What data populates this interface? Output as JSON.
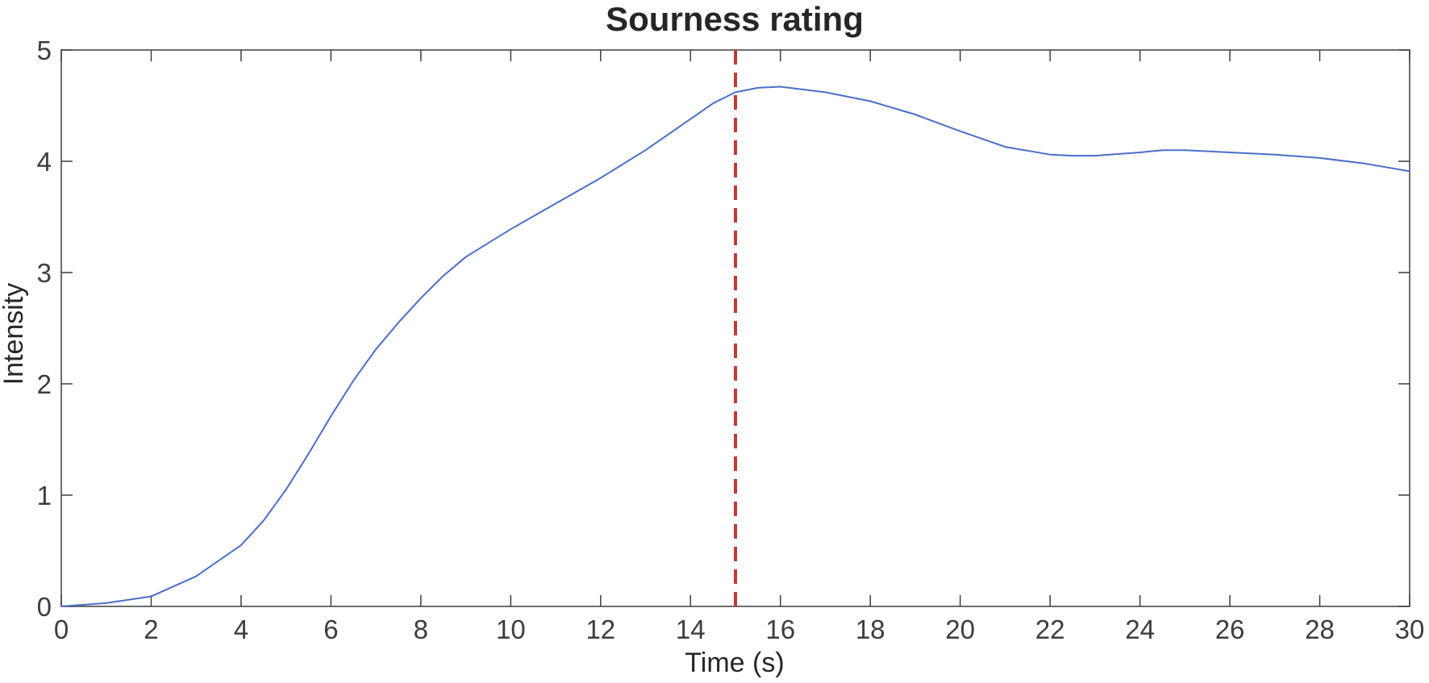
{
  "chart_data": {
    "type": "line",
    "title": "Sourness rating",
    "xlabel": "Time (s)",
    "ylabel": "Intensity",
    "xlim": [
      0,
      30
    ],
    "ylim": [
      0,
      5
    ],
    "xticks": [
      0,
      2,
      4,
      6,
      8,
      10,
      12,
      14,
      16,
      18,
      20,
      22,
      24,
      26,
      28,
      30
    ],
    "yticks": [
      0,
      1,
      2,
      3,
      4,
      5
    ],
    "grid": false,
    "series": [
      {
        "color": "#4a6fc9",
        "x": [
          0,
          1,
          2,
          3,
          4,
          4.5,
          5,
          5.5,
          6,
          6.5,
          7,
          7.5,
          8,
          8.5,
          9,
          10,
          11,
          12,
          13,
          14,
          14.5,
          15,
          15.5,
          16,
          17,
          18,
          19,
          20,
          21,
          22,
          22.5,
          23,
          24,
          24.5,
          25,
          26,
          27,
          28,
          29,
          30
        ],
        "y": [
          0,
          0.03,
          0.09,
          0.27,
          0.55,
          0.77,
          1.05,
          1.37,
          1.71,
          2.03,
          2.31,
          2.55,
          2.77,
          2.97,
          3.14,
          3.39,
          3.62,
          3.85,
          4.1,
          4.38,
          4.52,
          4.62,
          4.66,
          4.67,
          4.62,
          4.54,
          4.42,
          4.27,
          4.13,
          4.06,
          4.05,
          4.05,
          4.08,
          4.1,
          4.1,
          4.08,
          4.06,
          4.03,
          3.98,
          3.91
        ]
      }
    ],
    "annotations": [
      {
        "type": "vline",
        "x": 15,
        "color": "#c23a34",
        "style": "dashed"
      }
    ]
  }
}
